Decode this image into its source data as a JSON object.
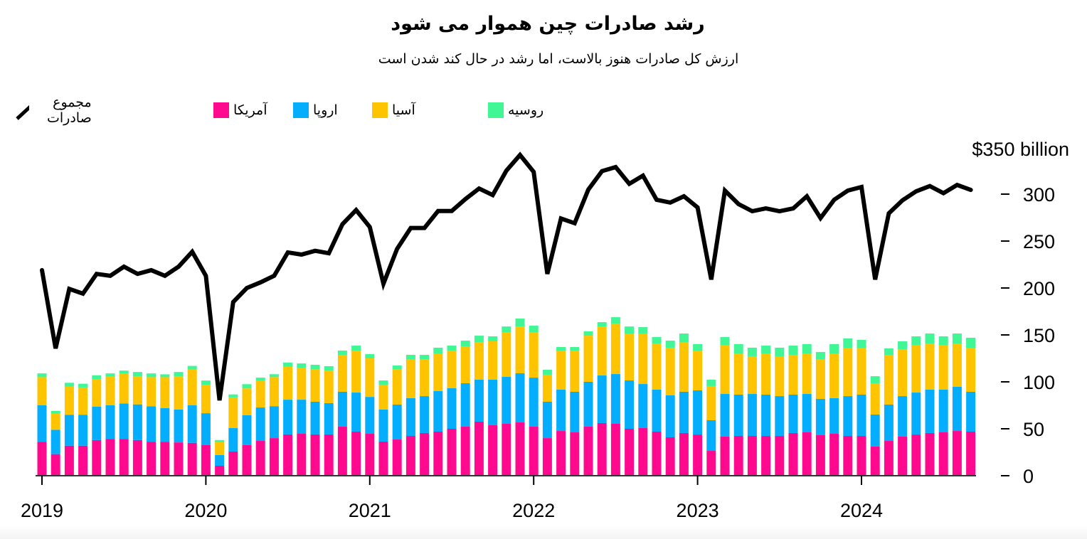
{
  "header": {
    "title": "رشد صادرات چین هموار می شود",
    "subtitle": "ارزش کل صادرات هنوز بالاست، اما رشد در حال کند شدن است"
  },
  "legend": {
    "total": "مجموع صادرات",
    "america": "آمریکا",
    "europe": "اروپا",
    "asia": "آسیا",
    "russia": "روسیه"
  },
  "colors": {
    "america": "#FF0A8F",
    "europe": "#04AEFD",
    "asia": "#FFC400",
    "russia": "#40F695",
    "total": "#000000"
  },
  "chart_data": {
    "type": "bar",
    "stacked": true,
    "title": "رشد صادرات چین هموار می شود",
    "subtitle": "ارزش کل صادرات هنوز بالاست، اما رشد در حال کند شدن است",
    "x_start": "2019-01",
    "x_frequency": "monthly",
    "x_tick_labels": [
      "2019",
      "2020",
      "2021",
      "2022",
      "2023",
      "2024"
    ],
    "y_unit_label": "$350 billion",
    "y_ticks": [
      0,
      50,
      100,
      150,
      200,
      250,
      300
    ],
    "ylim": [
      0,
      350
    ],
    "legend_placement": "top-left",
    "grid": false,
    "series": [
      {
        "name": "آمریکا",
        "values": [
          36,
          23,
          32,
          32,
          38,
          39,
          39,
          38,
          36,
          36,
          35.5,
          35,
          32.6,
          10.6,
          25.8,
          32.6,
          37.1,
          40.1,
          44,
          44.7,
          44,
          44,
          52.3,
          47,
          44.7,
          36.4,
          38.6,
          42.4,
          45.5,
          47,
          50,
          52.3,
          57.6,
          53.8,
          55.3,
          56.8,
          52.3,
          40.1,
          47.7,
          46.2,
          52.3,
          56.1,
          55.3,
          50,
          50.8,
          47,
          40.9,
          45.5,
          43.9,
          26.5,
          41.7,
          42.4,
          42.4,
          42.4,
          42.4,
          45.5,
          46.5,
          43.2,
          44.7,
          42.4,
          42.4,
          31.3,
          37.1,
          41.7,
          43.9,
          45.5,
          46.5,
          47.7,
          47
        ]
      },
      {
        "name": "اروپا",
        "values": [
          39,
          26,
          33,
          33,
          35.5,
          36,
          38,
          38,
          38,
          36,
          35,
          40,
          34,
          11.4,
          25,
          31.8,
          35.6,
          34,
          37,
          36.3,
          34.8,
          33.3,
          37.1,
          41.6,
          39.3,
          34.1,
          37.2,
          40.2,
          39.3,
          43.2,
          43.2,
          46.2,
          44.7,
          48.5,
          50,
          52.3,
          52.2,
          38.7,
          44,
          43.2,
          47.7,
          50.7,
          53,
          51.5,
          46.9,
          44.7,
          44.7,
          43.9,
          47,
          32.6,
          45.4,
          44,
          44.7,
          44,
          42.4,
          40.9,
          40.6,
          38.6,
          37.9,
          42.4,
          44,
          33.9,
          38.7,
          43.1,
          44.7,
          46.2,
          45.2,
          47,
          42.4
        ]
      },
      {
        "name": "آسیا",
        "values": [
          30,
          17,
          30,
          29,
          29.5,
          30.5,
          31.5,
          30,
          31,
          33,
          35.5,
          38,
          30.3,
          14,
          32.6,
          28.6,
          28.3,
          31,
          35,
          33.6,
          34.8,
          34.7,
          39.4,
          44.7,
          41,
          26.5,
          37.8,
          41.1,
          39.4,
          40.1,
          40.1,
          39.4,
          40.1,
          40.9,
          47.7,
          49.9,
          48,
          28.8,
          41.6,
          43.9,
          49.2,
          52.2,
          53.8,
          49.5,
          53.3,
          48.7,
          50.8,
          53,
          41.9,
          36.4,
          52.3,
          43.9,
          40.2,
          43.4,
          42,
          42.4,
          43.2,
          41.9,
          47.2,
          51.1,
          49.5,
          33.3,
          52.5,
          50,
          50.8,
          49.2,
          47.2,
          46.2,
          46.5
        ]
      },
      {
        "name": "روسیه",
        "values": [
          4,
          3,
          4,
          4,
          4,
          3.5,
          3.5,
          4.5,
          4,
          3,
          4.5,
          4,
          4.5,
          2,
          3.2,
          4.5,
          3.5,
          3,
          4.5,
          5,
          4.6,
          4.7,
          4.5,
          5.3,
          4.5,
          4.5,
          3.8,
          5.1,
          4.6,
          6.1,
          5.3,
          6,
          6.8,
          5.3,
          6,
          8.4,
          7.3,
          5.3,
          3.8,
          3.8,
          4.6,
          4.6,
          6.8,
          8,
          7.3,
          7.3,
          7.5,
          9.1,
          7.4,
          6.8,
          8.3,
          9.9,
          9.1,
          8.8,
          9.6,
          9.8,
          9.9,
          8.1,
          10.4,
          10.3,
          8.8,
          7.5,
          7.3,
          8.4,
          9.1,
          10.6,
          9.6,
          10.6,
          11.1
        ]
      }
    ],
    "line_series": {
      "name": "مجموع صادرات",
      "type": "line",
      "values": [
        219,
        135.6,
        199,
        194,
        215,
        213,
        222.7,
        215,
        219,
        213,
        222.7,
        238.6,
        213,
        80.3,
        185,
        200,
        206,
        213,
        237.9,
        235.6,
        239.6,
        237,
        268,
        283,
        265,
        204.5,
        241.7,
        263.9,
        263.9,
        282,
        282,
        294.7,
        306,
        299,
        325,
        341.7,
        323.7,
        215,
        274,
        269,
        304.8,
        324.5,
        328.8,
        311,
        319.7,
        294,
        291,
        297.7,
        285.8,
        209,
        303.8,
        289.4,
        281.8,
        284.8,
        281.8,
        284.8,
        297.7,
        274.5,
        294,
        303.8,
        307.6,
        209,
        279.5,
        293.4,
        303,
        308.6,
        301,
        309.8,
        304.5
      ]
    }
  }
}
